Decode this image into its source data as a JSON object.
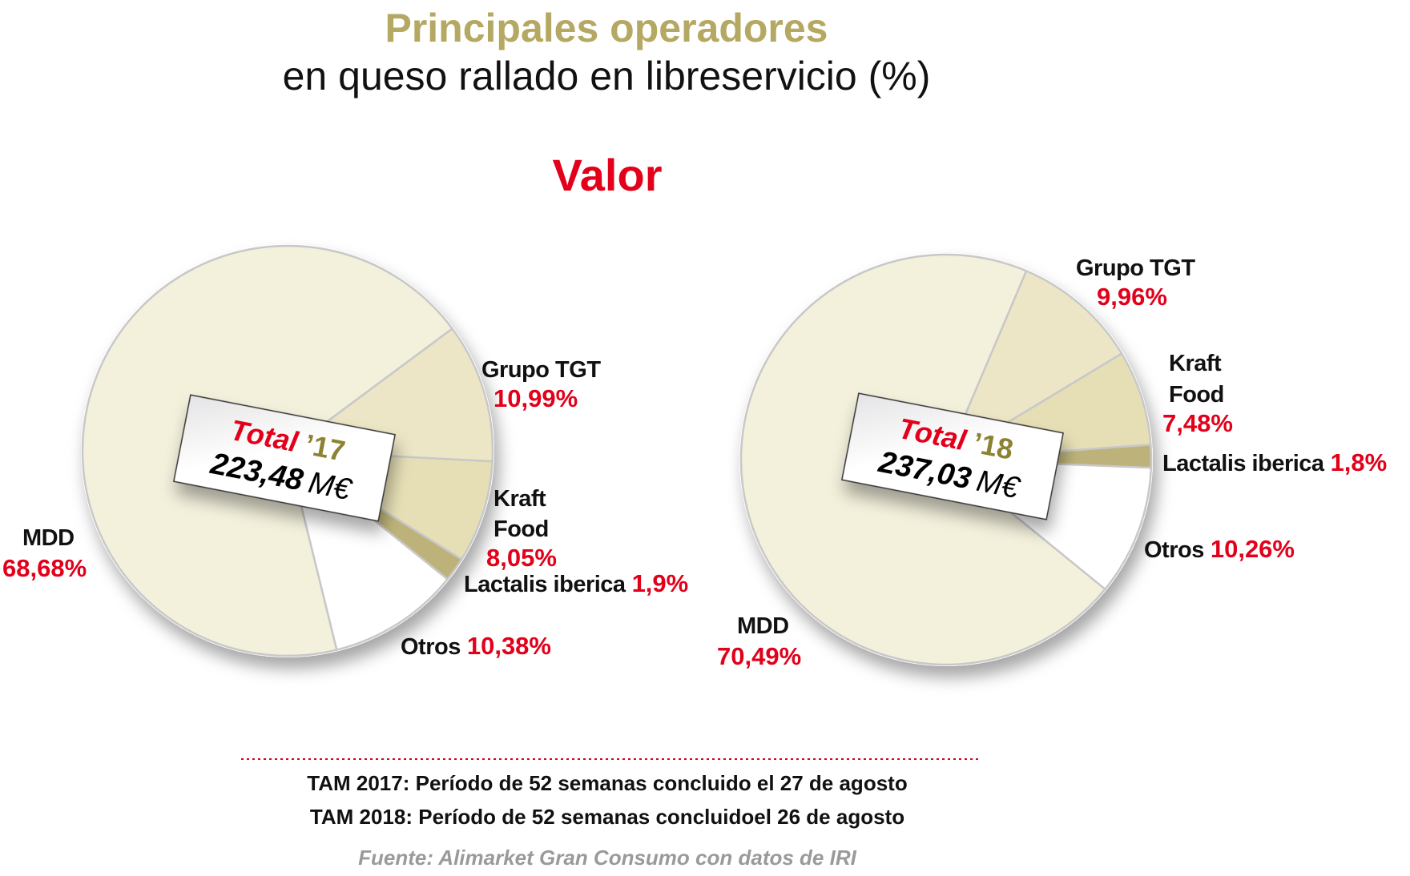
{
  "title": "Principales operadores",
  "subtitle": "en queso rallado en libreservicio (%)",
  "section": "Valor",
  "colors": {
    "title": "#b5a862",
    "accent": "#e2001a",
    "separator": "#c8c8c8"
  },
  "chart_data": [
    {
      "type": "pie",
      "card": {
        "total_label": "Total",
        "year": "’17",
        "amount": "223,48",
        "unit": "M€"
      },
      "slices": [
        {
          "name": "Grupo TGT",
          "value": 10.99,
          "label": "10,99%",
          "color": "#ece6c6"
        },
        {
          "name": "Kraft Food",
          "name_lines": [
            "Kraft",
            "Food"
          ],
          "value": 8.05,
          "label": "8,05%",
          "color": "#e6dfb6"
        },
        {
          "name": "Lactalis iberica",
          "value": 1.9,
          "label": "1,9%",
          "color": "#bdb37a"
        },
        {
          "name": "Otros",
          "value": 10.38,
          "label": "10,38%",
          "color": "#ffffff"
        },
        {
          "name": "MDD",
          "value": 68.68,
          "label": "68,68%",
          "color": "#f3f0dc"
        }
      ]
    },
    {
      "type": "pie",
      "card": {
        "total_label": "Total",
        "year": "’18",
        "amount": "237,03",
        "unit": "M€"
      },
      "slices": [
        {
          "name": "Grupo TGT",
          "value": 9.96,
          "label": "9,96%",
          "color": "#ece6c6"
        },
        {
          "name": "Kraft Food",
          "name_lines": [
            "Kraft",
            "Food"
          ],
          "value": 7.48,
          "label": "7,48%",
          "color": "#e6dfb6"
        },
        {
          "name": "Lactalis iberica",
          "value": 1.8,
          "label": "1,8%",
          "color": "#bdb37a"
        },
        {
          "name": "Otros",
          "value": 10.26,
          "label": "10,26%",
          "color": "#ffffff"
        },
        {
          "name": "MDD",
          "value": 70.49,
          "label": "70,49%",
          "color": "#f3f0dc"
        }
      ]
    }
  ],
  "footnotes": [
    "TAM 2017: Período de 52 semanas concluido el 27 de agosto",
    "TAM 2018: Período de 52 semanas concluidoel 26 de agosto"
  ],
  "source": "Fuente: Alimarket Gran Consumo con datos de IRI"
}
